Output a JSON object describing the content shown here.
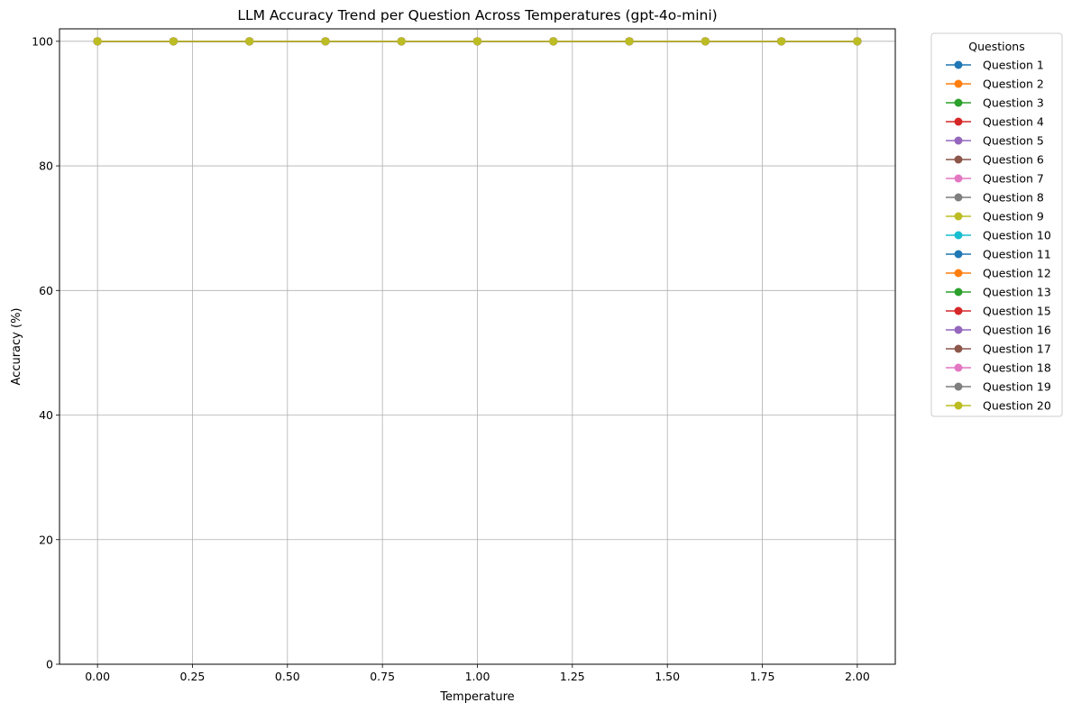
{
  "chart_data": {
    "type": "line",
    "title": "LLM Accuracy Trend per Question Across Temperatures (gpt-4o-mini)",
    "xlabel": "Temperature",
    "ylabel": "Accuracy (%)",
    "xlim": [
      -0.1,
      2.1
    ],
    "ylim": [
      0,
      102
    ],
    "xticks": [
      0.0,
      0.25,
      0.5,
      0.75,
      1.0,
      1.25,
      1.5,
      1.75,
      2.0
    ],
    "xtick_labels": [
      "0.00",
      "0.25",
      "0.50",
      "0.75",
      "1.00",
      "1.25",
      "1.50",
      "1.75",
      "2.00"
    ],
    "yticks": [
      0,
      20,
      40,
      60,
      80,
      100
    ],
    "ytick_labels": [
      "0",
      "20",
      "40",
      "60",
      "80",
      "100"
    ],
    "grid": true,
    "legend_title": "Questions",
    "legend_position": "outside-right",
    "x": [
      0.0,
      0.2,
      0.4,
      0.6,
      0.8,
      1.0,
      1.2,
      1.4,
      1.6,
      1.8,
      2.0
    ],
    "series": [
      {
        "name": "Question 1",
        "color": "#1f77b4",
        "values": [
          100,
          100,
          100,
          100,
          100,
          100,
          100,
          100,
          100,
          100,
          100
        ]
      },
      {
        "name": "Question 2",
        "color": "#ff7f0e",
        "values": [
          100,
          100,
          100,
          100,
          100,
          100,
          100,
          100,
          100,
          100,
          100
        ]
      },
      {
        "name": "Question 3",
        "color": "#2ca02c",
        "values": [
          100,
          100,
          100,
          100,
          100,
          100,
          100,
          100,
          100,
          100,
          100
        ]
      },
      {
        "name": "Question 4",
        "color": "#d62728",
        "values": [
          100,
          100,
          100,
          100,
          100,
          100,
          100,
          100,
          100,
          100,
          100
        ]
      },
      {
        "name": "Question 5",
        "color": "#9467bd",
        "values": [
          100,
          100,
          100,
          100,
          100,
          100,
          100,
          100,
          100,
          100,
          100
        ]
      },
      {
        "name": "Question 6",
        "color": "#8c564b",
        "values": [
          100,
          100,
          100,
          100,
          100,
          100,
          100,
          100,
          100,
          100,
          100
        ]
      },
      {
        "name": "Question 7",
        "color": "#e377c2",
        "values": [
          100,
          100,
          100,
          100,
          100,
          100,
          100,
          100,
          100,
          100,
          100
        ]
      },
      {
        "name": "Question 8",
        "color": "#7f7f7f",
        "values": [
          100,
          100,
          100,
          100,
          100,
          100,
          100,
          100,
          100,
          100,
          100
        ]
      },
      {
        "name": "Question 9",
        "color": "#bcbd22",
        "values": [
          100,
          100,
          100,
          100,
          100,
          100,
          100,
          100,
          100,
          100,
          100
        ]
      },
      {
        "name": "Question 10",
        "color": "#17becf",
        "values": [
          100,
          100,
          100,
          100,
          100,
          100,
          100,
          100,
          100,
          100,
          100
        ]
      },
      {
        "name": "Question 11",
        "color": "#1f77b4",
        "values": [
          100,
          100,
          100,
          100,
          100,
          100,
          100,
          100,
          100,
          100,
          100
        ]
      },
      {
        "name": "Question 12",
        "color": "#ff7f0e",
        "values": [
          100,
          100,
          100,
          100,
          100,
          100,
          100,
          100,
          100,
          100,
          100
        ]
      },
      {
        "name": "Question 13",
        "color": "#2ca02c",
        "values": [
          100,
          100,
          100,
          100,
          100,
          100,
          100,
          100,
          100,
          100,
          100
        ]
      },
      {
        "name": "Question 15",
        "color": "#d62728",
        "values": [
          100,
          100,
          100,
          100,
          100,
          100,
          100,
          100,
          100,
          100,
          100
        ]
      },
      {
        "name": "Question 16",
        "color": "#9467bd",
        "values": [
          100,
          100,
          100,
          100,
          100,
          100,
          100,
          100,
          100,
          100,
          100
        ]
      },
      {
        "name": "Question 17",
        "color": "#8c564b",
        "values": [
          100,
          100,
          100,
          100,
          100,
          100,
          100,
          100,
          100,
          100,
          100
        ]
      },
      {
        "name": "Question 18",
        "color": "#e377c2",
        "values": [
          100,
          100,
          100,
          100,
          100,
          100,
          100,
          100,
          100,
          100,
          100
        ]
      },
      {
        "name": "Question 19",
        "color": "#7f7f7f",
        "values": [
          100,
          100,
          100,
          100,
          100,
          100,
          100,
          100,
          100,
          100,
          100
        ]
      },
      {
        "name": "Question 20",
        "color": "#bcbd22",
        "values": [
          100,
          100,
          100,
          100,
          100,
          100,
          100,
          100,
          100,
          100,
          100
        ]
      }
    ]
  }
}
